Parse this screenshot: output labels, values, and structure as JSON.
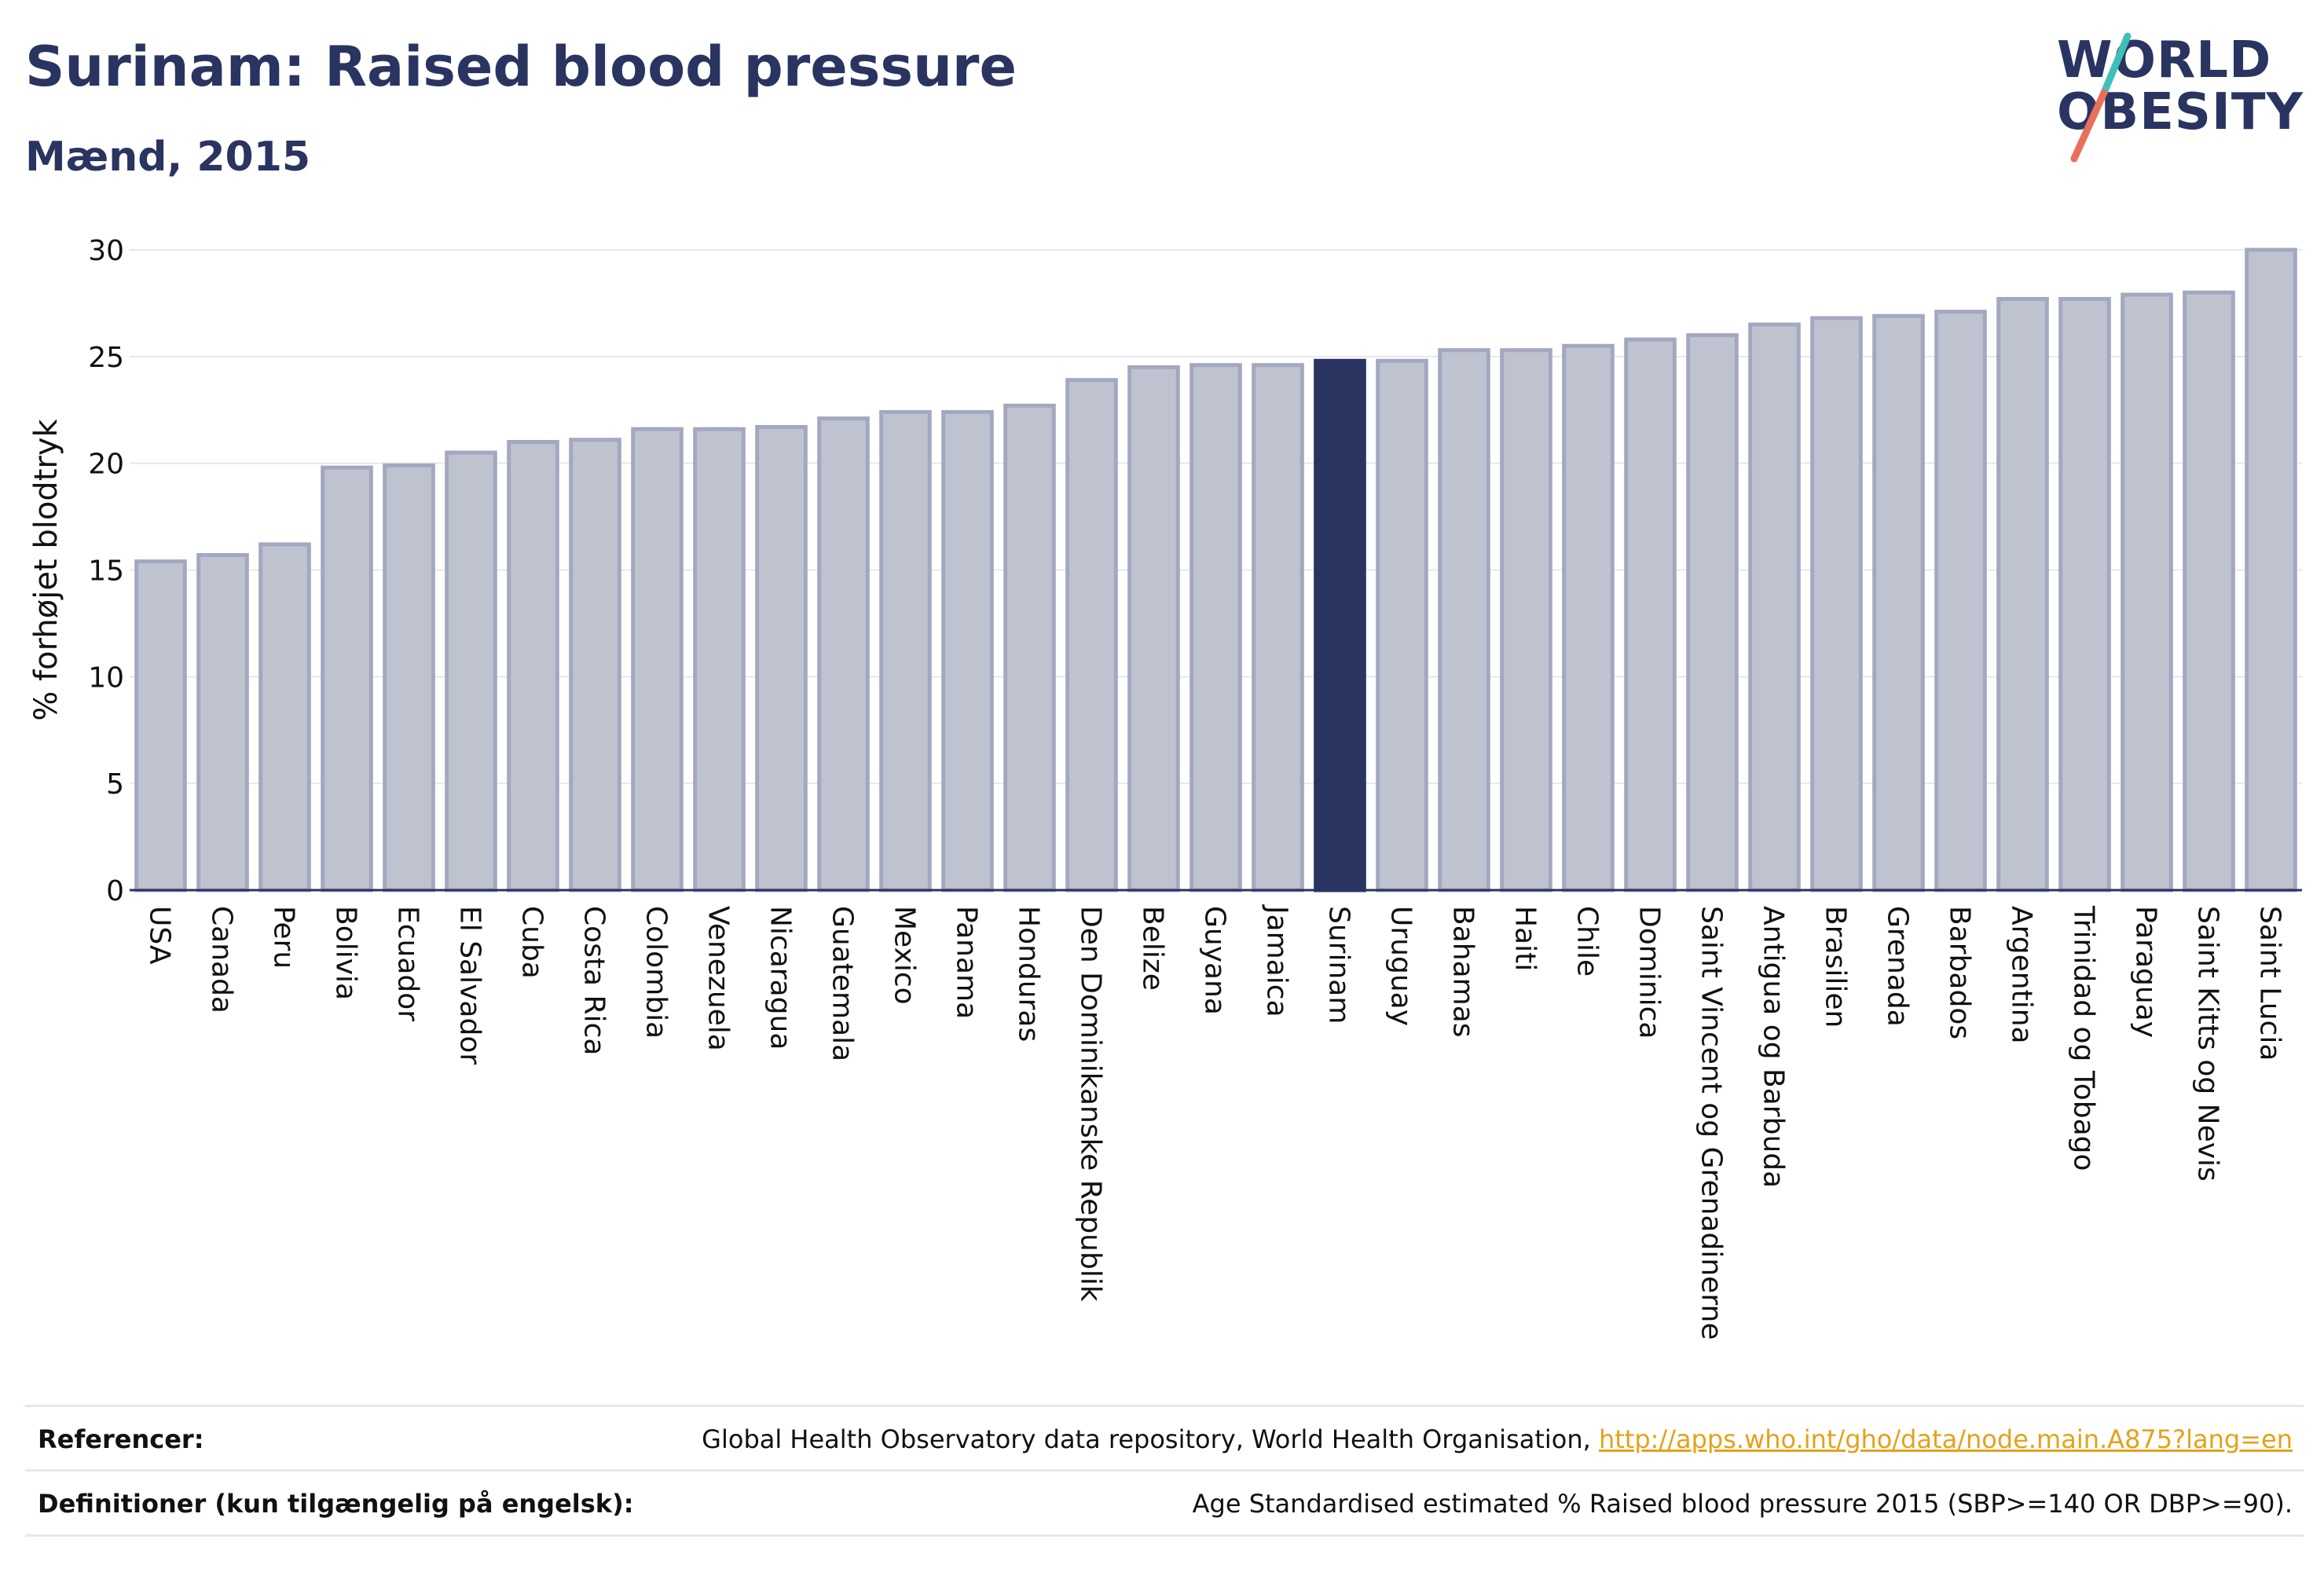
{
  "header": {
    "title": "Surinam: Raised blood pressure",
    "subtitle": "Mænd, 2015"
  },
  "logo": {
    "line1": "WORLD",
    "line2": "OBESITY",
    "colors": {
      "text": "#2a3461",
      "slash_top": "#3fbfb8",
      "slash_bottom": "#e8705a"
    }
  },
  "colors": {
    "bar_default": "#bfc3d0",
    "bar_default_stroke": "#a3a8c0",
    "bar_highlight": "#2a3461",
    "grid": "#e6e8ee",
    "axis": "#2a3461"
  },
  "chart_data": {
    "type": "bar",
    "title": "Surinam: Raised blood pressure",
    "subtitle": "Mænd, 2015",
    "xlabel": "",
    "ylabel": "% forhøjet blodtryk",
    "ylim": [
      0,
      30
    ],
    "yticks": [
      0,
      5,
      10,
      15,
      20,
      25,
      30
    ],
    "grid": true,
    "highlight": "Surinam",
    "categories": [
      "USA",
      "Canada",
      "Peru",
      "Bolivia",
      "Ecuador",
      "El Salvador",
      "Cuba",
      "Costa Rica",
      "Colombia",
      "Venezuela",
      "Nicaragua",
      "Guatemala",
      "Mexico",
      "Panama",
      "Honduras",
      "Den Dominikanske Republik",
      "Belize",
      "Guyana",
      "Jamaica",
      "Surinam",
      "Uruguay",
      "Bahamas",
      "Haiti",
      "Chile",
      "Dominica",
      "Saint Vincent og Grenadinerne",
      "Antigua og Barbuda",
      "Brasilien",
      "Grenada",
      "Barbados",
      "Argentina",
      "Trinidad og Tobago",
      "Paraguay",
      "Saint Kitts og Nevis",
      "Saint Lucia"
    ],
    "values": [
      15.4,
      15.7,
      16.2,
      19.8,
      19.9,
      20.5,
      21.0,
      21.1,
      21.6,
      21.6,
      21.7,
      22.1,
      22.4,
      22.4,
      22.7,
      23.9,
      24.5,
      24.6,
      24.6,
      24.8,
      24.8,
      25.3,
      25.3,
      25.5,
      25.8,
      26.0,
      26.5,
      26.8,
      26.9,
      27.1,
      27.7,
      27.7,
      27.9,
      28.0,
      30.0
    ]
  },
  "footer": {
    "references_label": "Referencer:",
    "references_text": "Global Health Observatory data repository, World Health Organisation, ",
    "references_link": "http://apps.who.int/gho/data/node.main.A875?lang=en",
    "definitions_label": "Definitioner (kun tilgængelig på engelsk):",
    "definitions_text": "Age Standardised estimated % Raised blood pressure 2015 (SBP>=140 OR DBP>=90)."
  }
}
